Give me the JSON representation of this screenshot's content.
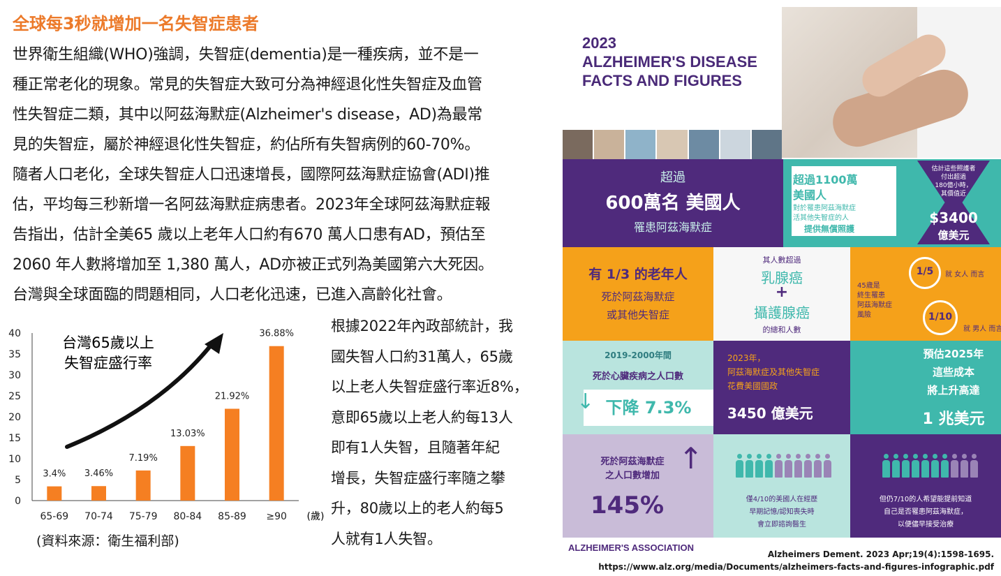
{
  "article": {
    "title": "全球每3秒就增加一名失智症患者",
    "paragraph_lines": [
      "世界衛生組織(WHO)強調，失智症(dementia)是一種疾病，並不是一",
      "種正常老化的現象。常見的失智症大致可分為神經退化性失智症及血管",
      "性失智症二類，其中以阿茲海默症(Alzheimer's disease，AD)為最常",
      "見的失智症，屬於神經退化性失智症，約佔所有失智病例的60-70%。",
      "隨者人口老化，全球失智症人口迅速增長，國際阿茲海默症協會(ADI)推",
      "估，平均每三秒新增一名阿茲海默症病患者。2023年全球阿茲海默症報",
      "告指出，估計全美65 歲以上老年人口約有670 萬人口患有AD，預估至",
      "2060 年人數將增加至 1,380 萬人，AD亦被正式列為美國第六大死因。",
      "台灣與全球面臨的問題相同，人口老化迅速，已進入高齡化社會。"
    ],
    "side_lines": [
      "根據2022年內政部統計，我",
      "國失智人口約31萬人，65歲",
      "以上老人失智症盛行率近8%，",
      "意即65歲以上老人約每13人",
      "即有1人失智，且隨著年紀",
      "增長，失智症盛行率隨之攀",
      "升，80歲以上的老人約每5",
      "人就有1人失智。"
    ],
    "source_note": "(資料來源：衛生福利部)"
  },
  "chart_data": {
    "type": "bar",
    "title_lines": [
      "台灣65歲以上",
      "失智症盛行率"
    ],
    "categories": [
      "65-69",
      "70-74",
      "75-79",
      "80-84",
      "85-89",
      "≥90"
    ],
    "values": [
      3.4,
      3.46,
      7.19,
      13.03,
      21.92,
      36.88
    ],
    "data_labels": [
      "3.4%",
      "3.46%",
      "7.19%",
      "13.03%",
      "21.92%",
      "36.88%"
    ],
    "ylim": [
      0,
      40
    ],
    "yticks": [
      0,
      5,
      10,
      15,
      20,
      25,
      30,
      35,
      40
    ],
    "x_unit": "(歲)",
    "xlabel": "",
    "ylabel": "",
    "bar_color": "#f57f22",
    "arrow_color": "#111111",
    "grid": false,
    "legend": "none"
  },
  "infographic": {
    "title_lines": [
      "2023",
      "ALZHEIMER'S DISEASE",
      "FACTS AND FIGURES"
    ],
    "row1": {
      "left": [
        "超過",
        "600萬名 美國人",
        "罹患阿茲海默症"
      ],
      "mid": [
        "超過1100萬",
        "美國人",
        "對於罹患阿茲海默症",
        "活其他失智症的人",
        "提供無償照護"
      ],
      "right": [
        "估計這些照護者",
        "付出超過",
        "180億小時，",
        "其價值近",
        "$3400",
        "億美元"
      ]
    },
    "row2": {
      "left": [
        "有  1/3  的老年人",
        "死於阿茲海默症",
        "或其他失智症"
      ],
      "mid": [
        "其人數超過",
        "乳腺癌",
        "+",
        "攝護腺癌",
        "的總和人數"
      ],
      "right": [
        "45歲是",
        "終生罹患",
        "阿茲海默症",
        "風險",
        "1/5",
        "就 女人 而言",
        "1/10",
        "就 男人 而言"
      ]
    },
    "row3": {
      "left": [
        "2019-2000年間",
        "死於心臟疾病之人口數",
        "下降 7.3%"
      ],
      "mid": [
        "2023年，",
        "阿茲海默症及其他失智症",
        "花費美國國政",
        "3450 億美元"
      ],
      "right": [
        "預估2025年",
        "這些成本",
        "將上升高達",
        "1 兆美元"
      ]
    },
    "row4": {
      "left": [
        "死於阿茲海默症",
        "之人口數增加",
        "145%"
      ],
      "mid": [
        "僅4/10的美國人在經歷",
        "早期記憶/認知喪失時",
        "會立即諮詢醫生"
      ],
      "right": [
        "但仍7/10的人希望能提前知道",
        "自己是否罹患阿茲海默症，",
        "以便儘早接受治療"
      ]
    },
    "logo": "ALZHEIMER'S ASSOCIATION",
    "citation_lines": [
      "Alzheimers Dement. 2023 Apr;19(4):1598-1695.",
      "https://www.alz.org/media/Documents/alzheimers-facts-and-figures-infographic.pdf"
    ],
    "colors": {
      "purple": "#4f2a7c",
      "teal": "#3fb8ac",
      "orange": "#f5a11a",
      "light_teal": "#b9e4de",
      "light_purple": "#c9bcd8"
    }
  }
}
